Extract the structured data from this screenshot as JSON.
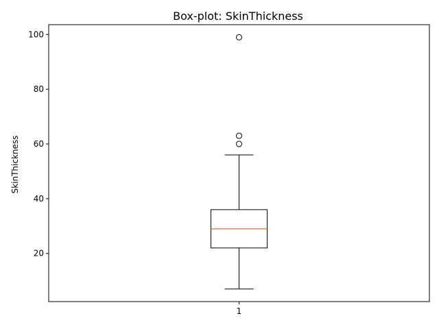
{
  "chart_data": {
    "type": "box",
    "title": "Box-plot: SkinThickness",
    "xlabel": "",
    "ylabel": "SkinThickness",
    "categories": [
      "1"
    ],
    "ylim": [
      2.4,
      103.6
    ],
    "yticks": [
      20,
      40,
      60,
      80,
      100
    ],
    "grid": false,
    "boxes": [
      {
        "category": "1",
        "whisker_low": 7,
        "q1": 22,
        "median": 29,
        "q3": 36,
        "whisker_high": 56,
        "outliers": [
          60,
          63,
          99
        ]
      }
    ],
    "colors": {
      "box": "#000000",
      "median": "#ff7f0e",
      "outlier": "#000000"
    }
  }
}
